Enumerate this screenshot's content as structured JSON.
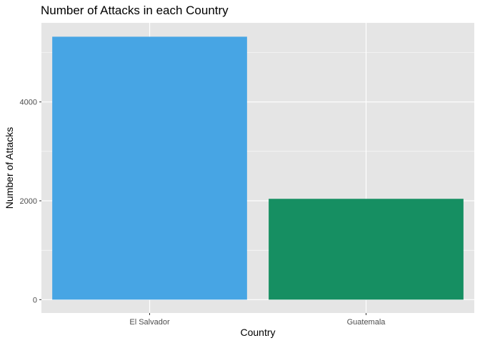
{
  "chart_data": {
    "type": "bar",
    "title": "Number of Attacks in each Country",
    "xlabel": "Country",
    "ylabel": "Number of Attacks",
    "categories": [
      "El Salvador",
      "Guatemala"
    ],
    "values": [
      5320,
      2040
    ],
    "colors": [
      "#47A5E4",
      "#168F62"
    ],
    "ylim": [
      -270,
      5600
    ],
    "yticks": [
      0,
      2000,
      4000
    ],
    "ytick_labels": [
      "0",
      "2000",
      "4000"
    ],
    "grid": true,
    "panel_background": "#E5E5E5",
    "grid_color": "#FFFFFF",
    "legend": "none"
  }
}
